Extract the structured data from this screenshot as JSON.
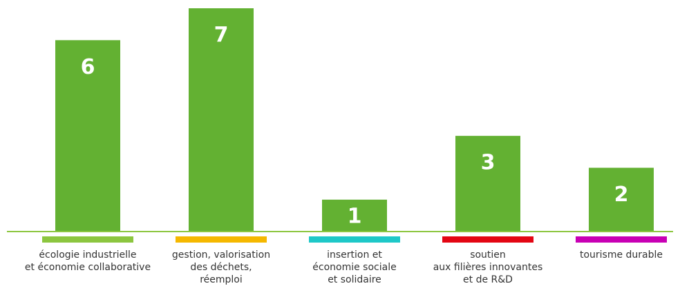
{
  "chart_data": {
    "type": "bar",
    "categories": [
      "écologie industrielle\net économie collaborative",
      "gestion, valorisation\ndes déchets,\nréemploi",
      "insertion et\néconomie sociale\net solidaire",
      "soutien\naux filières innovantes\net de R&D",
      "tourisme durable"
    ],
    "values": [
      6,
      7,
      1,
      3,
      2
    ],
    "color": "#63b132",
    "category_colors": [
      "#8cc63f",
      "#f5b800",
      "#1ec8c8",
      "#e30613",
      "#c800b4"
    ],
    "ylim": [
      0,
      7
    ]
  }
}
